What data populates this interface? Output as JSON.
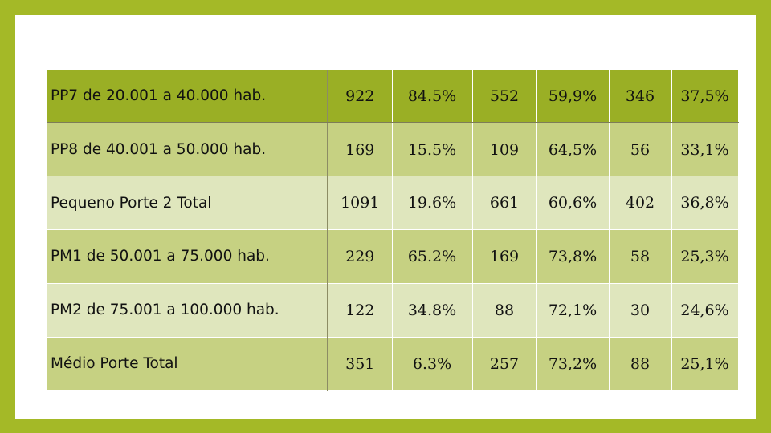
{
  "table": {
    "rows": [
      {
        "label": "PP7 de 20.001 a 40.000 hab.",
        "cells": [
          "922",
          "84.5%",
          "552",
          "59,9%",
          "346",
          "37,5%"
        ]
      },
      {
        "label": "PP8 de 40.001 a 50.000 hab.",
        "cells": [
          "169",
          "15.5%",
          "109",
          "64,5%",
          "56",
          "33,1%"
        ]
      },
      {
        "label": "Pequeno Porte 2 Total",
        "cells": [
          "1091",
          "19.6%",
          "661",
          "60,6%",
          "402",
          "36,8%"
        ]
      },
      {
        "label": "PM1 de 50.001 a 75.000 hab.",
        "cells": [
          "229",
          "65.2%",
          "169",
          "73,8%",
          "58",
          "25,3%"
        ]
      },
      {
        "label": "PM2 de 75.001 a 100.000 hab.",
        "cells": [
          "122",
          "34.8%",
          "88",
          "72,1%",
          "30",
          "24,6%"
        ]
      },
      {
        "label": "Médio Porte Total",
        "cells": [
          "351",
          "6.3%",
          "257",
          "73,2%",
          "88",
          "25,1%"
        ]
      }
    ]
  },
  "colors": {
    "frame": "#a4b927",
    "header_row": "#9aaf25",
    "dark_row": "#c6d182",
    "light_row": "#dfe6bd"
  }
}
